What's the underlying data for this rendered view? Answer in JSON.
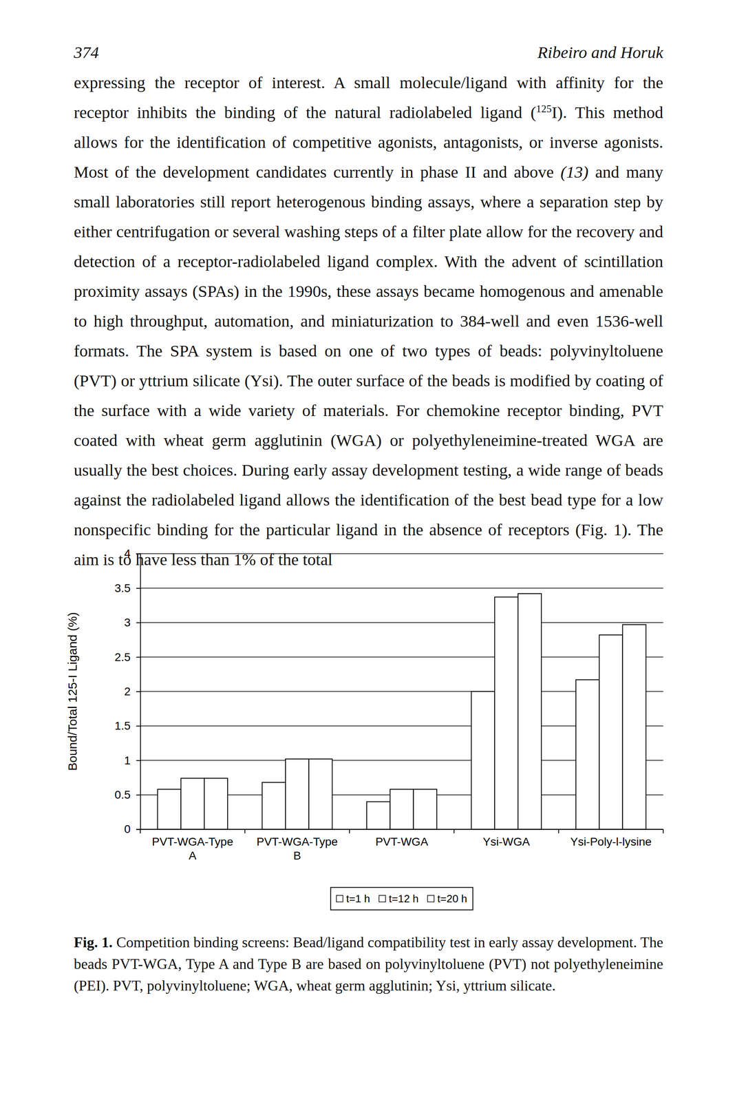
{
  "header": {
    "page": "374",
    "running_head": "Ribeiro and Horuk"
  },
  "body": {
    "runs": [
      {
        "text": "expressing the receptor of interest. A small molecule/ligand with affinity for the receptor inhibits the binding of the natural radiolabeled ligand (",
        "format": "plain"
      },
      {
        "text": "125",
        "format": "sup"
      },
      {
        "text": "I). This method allows for the identification of competitive agonists, antagonists, or inverse agonists. Most of the development candidates currently in phase II and above ",
        "format": "plain"
      },
      {
        "text": "(13)",
        "format": "italic"
      },
      {
        "text": " and many small laboratories still report heterogenous binding assays, where a separation step by either centrifugation or several washing steps of a filter plate allow for the recovery and detection of a receptor-radiolabeled ligand complex. With the advent of scintillation proximity assays (SPAs) in the 1990s, these assays became homogenous and amenable to high throughput, automation, and miniaturization to 384-well and even 1536-well formats. The SPA system is based on one of two types of beads: polyvinyltoluene (PVT) or yttrium silicate (Ysi). The outer surface of the beads is modified by coating of the surface with a wide variety of materials. For chemokine receptor binding, PVT coated with wheat germ agglutinin (WGA) or polyethyleneimine-treated WGA are usually the best choices. During early assay development testing, a wide range of beads against the radiolabeled ligand allows the identification of the best bead type for a low nonspecific binding for the particular ligand in the absence of receptors (Fig. 1). The aim is to have less than 1% of the total",
        "format": "plain"
      }
    ]
  },
  "chart_data": {
    "type": "bar",
    "y_label": "Bound/Total 125-I Ligand (%)",
    "categories": [
      "PVT-WGA-Type A",
      "PVT-WGA-Type B",
      "PVT-WGA",
      "Ysi-WGA",
      "Ysi-Poly-l-lysine"
    ],
    "series": [
      {
        "name": "t=1 h",
        "color": "#ffffff",
        "values": [
          0.58,
          0.68,
          0.4,
          2.0,
          2.17
        ]
      },
      {
        "name": "t=12 h",
        "color": "#ffffff",
        "values": [
          0.74,
          1.02,
          0.58,
          3.37,
          2.82
        ]
      },
      {
        "name": "t=20 h",
        "color": "#ffffff",
        "values": [
          0.74,
          1.02,
          0.58,
          3.42,
          2.97
        ]
      }
    ],
    "ylim": [
      0,
      4
    ],
    "yticks": [
      0,
      0.5,
      1,
      1.5,
      2,
      2.5,
      3,
      3.5,
      4
    ],
    "grid": true,
    "legend": "bottom"
  },
  "caption": {
    "label": "Fig. 1.",
    "text": "Competition binding screens: Bead/ligand compatibility test in early assay development. The beads PVT-WGA, Type A and Type B are based on polyvinyltoluene (PVT) not polyethyleneimine (PEI). PVT, polyvinyltoluene; WGA, wheat germ agglutinin; Ysi, yttrium silicate."
  }
}
